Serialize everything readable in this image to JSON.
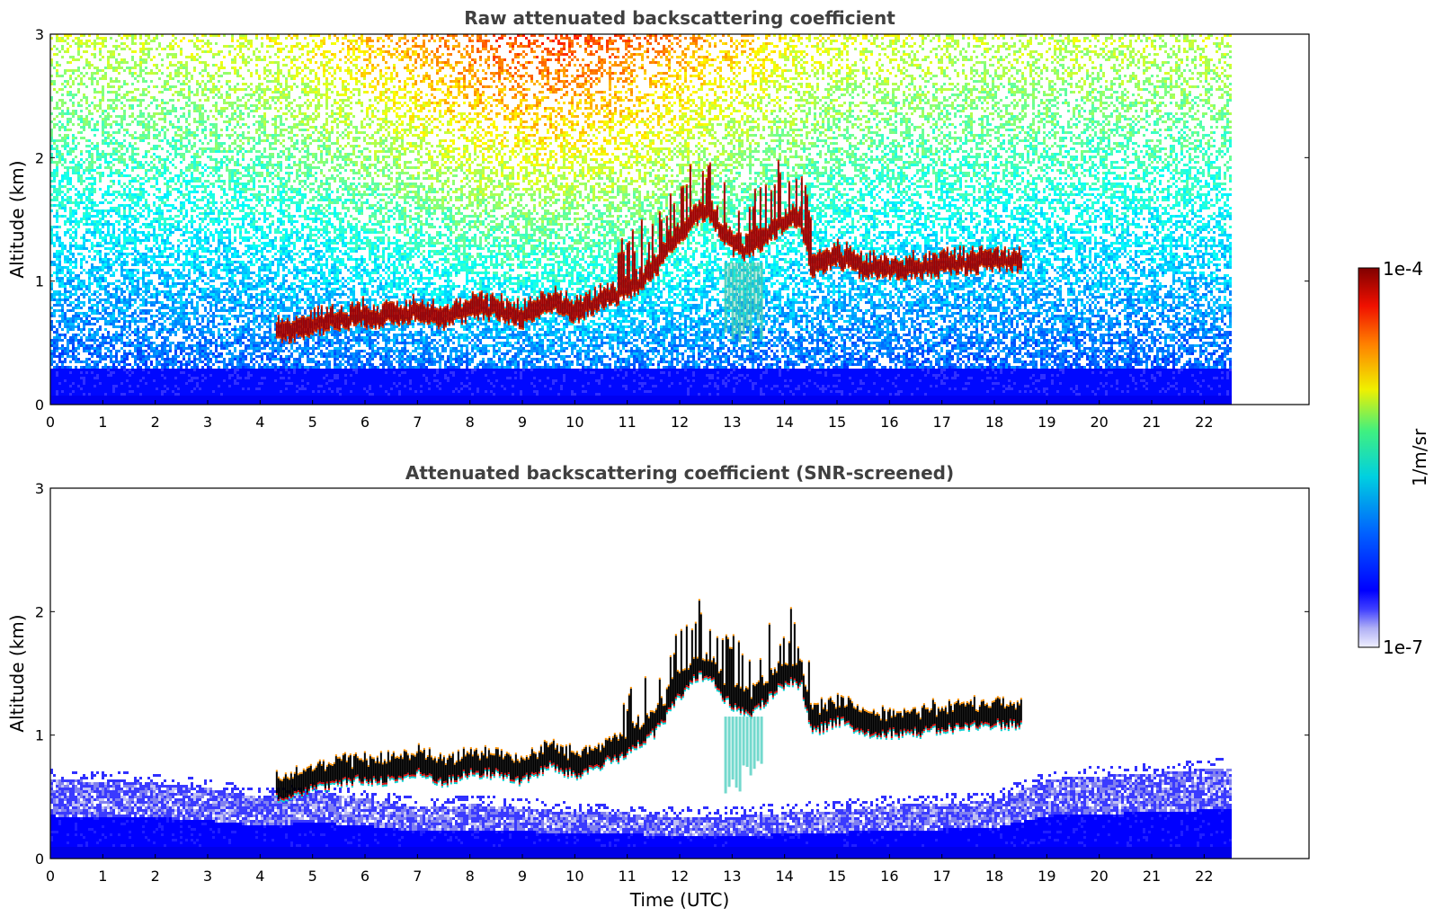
{
  "chart_data": [
    {
      "type": "heatmap",
      "title": "Raw attenuated backscattering coefficient",
      "xlabel": "",
      "ylabel": "Altitude (km)",
      "xlim": [
        0,
        24
      ],
      "ylim": [
        0,
        3
      ],
      "data_extent_x": [
        0,
        22.5
      ],
      "x_ticks": [
        "0",
        "1",
        "2",
        "3",
        "4",
        "5",
        "6",
        "7",
        "8",
        "9",
        "10",
        "11",
        "12",
        "13",
        "14",
        "15",
        "16",
        "17",
        "18",
        "19",
        "20",
        "21",
        "22"
      ],
      "y_ticks": [
        "0",
        "1",
        "2",
        "3"
      ],
      "cloud_layer": {
        "time_utc": [
          4.3,
          5.0,
          5.8,
          6.5,
          7.0,
          7.5,
          8.0,
          8.5,
          9.0,
          9.5,
          10.0,
          10.5,
          11.0,
          11.5,
          12.0,
          12.3,
          12.5,
          12.8,
          13.0,
          13.3,
          13.6,
          14.0,
          14.3,
          14.5,
          15.0,
          15.5,
          16.0,
          16.5,
          17.0,
          17.5,
          18.0,
          18.5
        ],
        "altitude_km": [
          0.52,
          0.6,
          0.66,
          0.67,
          0.72,
          0.65,
          0.72,
          0.72,
          0.66,
          0.78,
          0.7,
          0.8,
          0.88,
          1.05,
          1.35,
          1.5,
          1.52,
          1.35,
          1.25,
          1.2,
          1.3,
          1.45,
          1.45,
          1.05,
          1.15,
          1.05,
          1.05,
          1.05,
          1.08,
          1.1,
          1.12,
          1.12
        ]
      },
      "noise_increase_with_altitude": true,
      "boundary_layer_top_km": 0.3,
      "grid": false
    },
    {
      "type": "heatmap",
      "title": "Attenuated backscattering coefficient (SNR-screened)",
      "xlabel": "Time (UTC)",
      "ylabel": "Altitude (km)",
      "xlim": [
        0,
        24
      ],
      "ylim": [
        0,
        3
      ],
      "data_extent_x": [
        0,
        22.5
      ],
      "x_ticks": [
        "0",
        "1",
        "2",
        "3",
        "4",
        "5",
        "6",
        "7",
        "8",
        "9",
        "10",
        "11",
        "12",
        "13",
        "14",
        "15",
        "16",
        "17",
        "18",
        "19",
        "20",
        "21",
        "22"
      ],
      "y_ticks": [
        "0",
        "1",
        "2",
        "3"
      ],
      "boundary_layer_top_km": {
        "time_utc": [
          0,
          2,
          3,
          4,
          5,
          6,
          7,
          8,
          9,
          10,
          11,
          12,
          13,
          14,
          15,
          16,
          17,
          18,
          19,
          20,
          21,
          22.5
        ],
        "altitude_km": [
          0.65,
          0.62,
          0.58,
          0.5,
          0.55,
          0.5,
          0.42,
          0.45,
          0.42,
          0.38,
          0.38,
          0.35,
          0.35,
          0.38,
          0.4,
          0.45,
          0.45,
          0.48,
          0.65,
          0.68,
          0.7,
          0.75
        ]
      },
      "grid": false
    }
  ],
  "colorbar": {
    "max_label": "1e-4",
    "min_label": "1e-7",
    "unit_label": "1/m/sr",
    "colormap": "jet"
  },
  "colors": {
    "low_faint": "#dcdcf5",
    "low": "#0000ff",
    "mid": "#00d2d2",
    "high_mid": "#f0e000",
    "high": "#8b0000",
    "saturated": "#000000"
  }
}
